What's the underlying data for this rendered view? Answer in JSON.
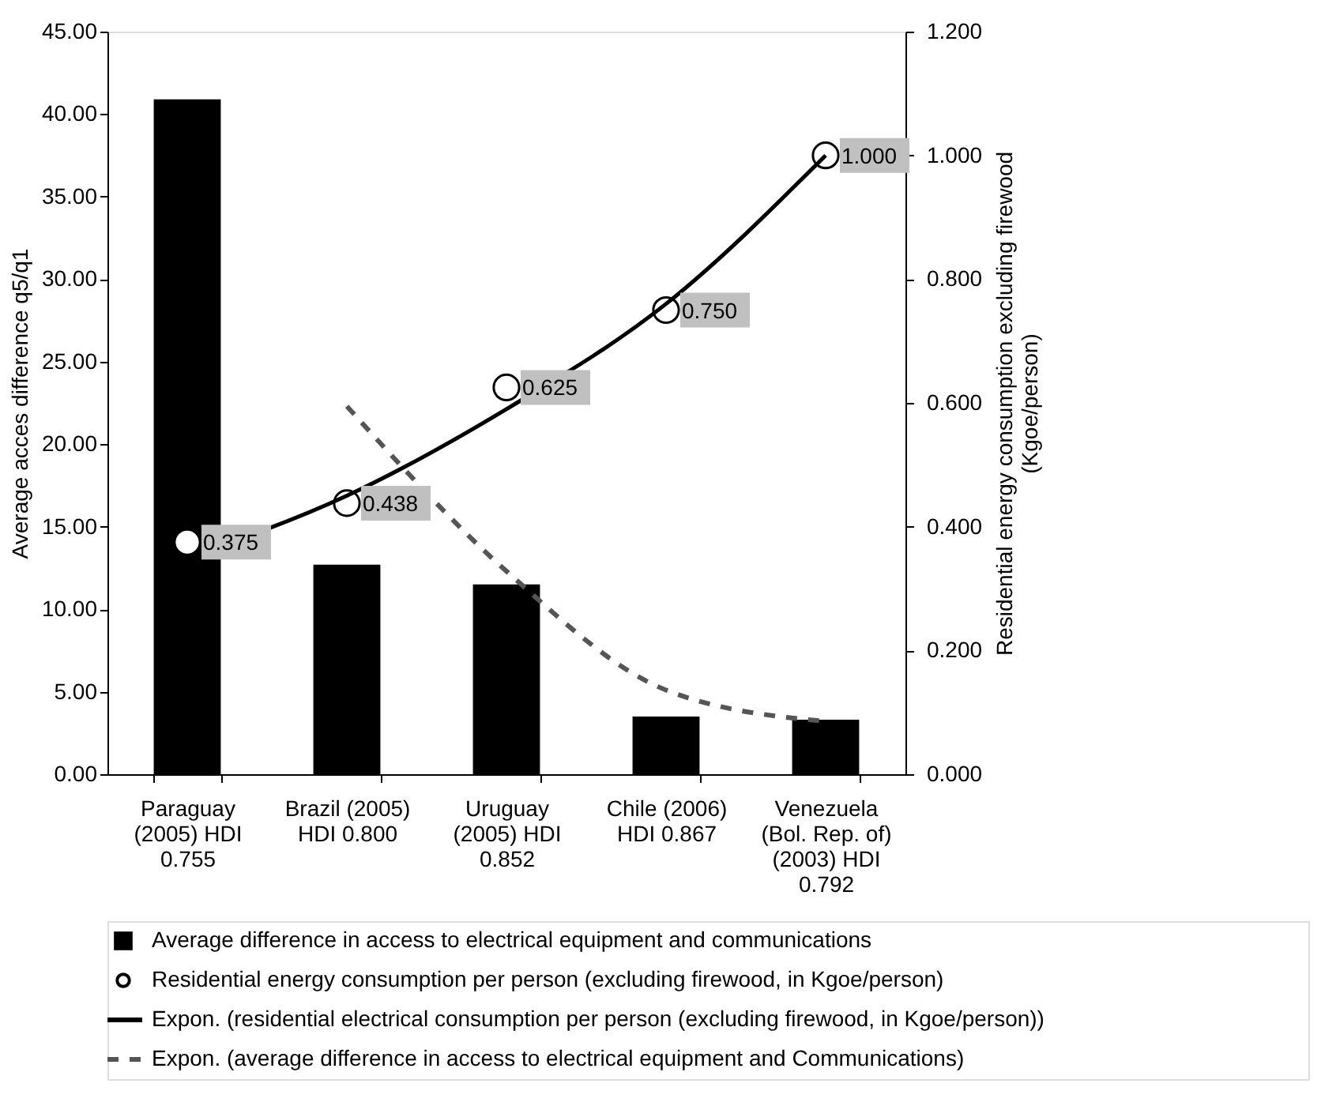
{
  "chart_data": {
    "type": "bar",
    "categories": [
      "Paraguay\n(2005) HDI\n0.755",
      "Brazil (2005)\nHDI 0.800",
      "Uruguay\n(2005) HDI\n0.852",
      "Chile (2006)\nHDI 0.867",
      "Venezuela\n(Bol. Rep. of)\n(2003) HDI\n0.792"
    ],
    "ylabel": "Average acces difference q5/q1",
    "y2label": "Residential energy  consumption excluding firewood\n(Kgoe/person)",
    "ylim": [
      0,
      45
    ],
    "yticks": [
      {
        "value": 0,
        "label": "0.00"
      },
      {
        "value": 5,
        "label": "5.00"
      },
      {
        "value": 10,
        "label": "10.00"
      },
      {
        "value": 15,
        "label": "15.00"
      },
      {
        "value": 20,
        "label": "20.00"
      },
      {
        "value": 25,
        "label": "25.00"
      },
      {
        "value": 30,
        "label": "30.00"
      },
      {
        "value": 35,
        "label": "35.00"
      },
      {
        "value": 40,
        "label": "40.00"
      },
      {
        "value": 45,
        "label": "45.00"
      }
    ],
    "y2lim": [
      0,
      1.2
    ],
    "y2ticks": [
      {
        "value": 0,
        "label": "0.000"
      },
      {
        "value": 0.2,
        "label": "0.200"
      },
      {
        "value": 0.4,
        "label": "0.400"
      },
      {
        "value": 0.6,
        "label": "0.600"
      },
      {
        "value": 0.8,
        "label": "0.800"
      },
      {
        "value": 1,
        "label": "1.000"
      },
      {
        "value": 1.2,
        "label": "1.200"
      }
    ],
    "grid": false,
    "legend": "bottom",
    "series": [
      {
        "name": "Average difference in access to electrical equipment and communications",
        "color": "#000000",
        "values": [
          40.9,
          12.7,
          11.5,
          3.5,
          3.3
        ]
      },
      {
        "name": "Residential energy consumption per person (excluding firewood, in Kgoe/person)",
        "type": "scatter",
        "axis": "y2",
        "marker": "circle",
        "color": "#000000",
        "values": [
          0.375,
          0.438,
          0.625,
          0.75,
          1.0
        ],
        "value_labels": [
          "0.375",
          "0.438",
          "0.625",
          "0.750",
          "1.000"
        ]
      },
      {
        "name": "Expon. (residential electrical consumption per person (excluding firewood, in Kgoe/person))",
        "type": "line",
        "axis": "y2",
        "line_style": "solid",
        "color": "#000000",
        "values": [
          0.35,
          0.45,
          0.59,
          0.76,
          1.0
        ]
      },
      {
        "name": "Expon. (average difference in access to electrical equipment and Communications)",
        "type": "line",
        "line_style": "dashed",
        "color": "#555555",
        "values": [
          null,
          22.3,
          12.3,
          5.1,
          3.2
        ]
      }
    ]
  }
}
